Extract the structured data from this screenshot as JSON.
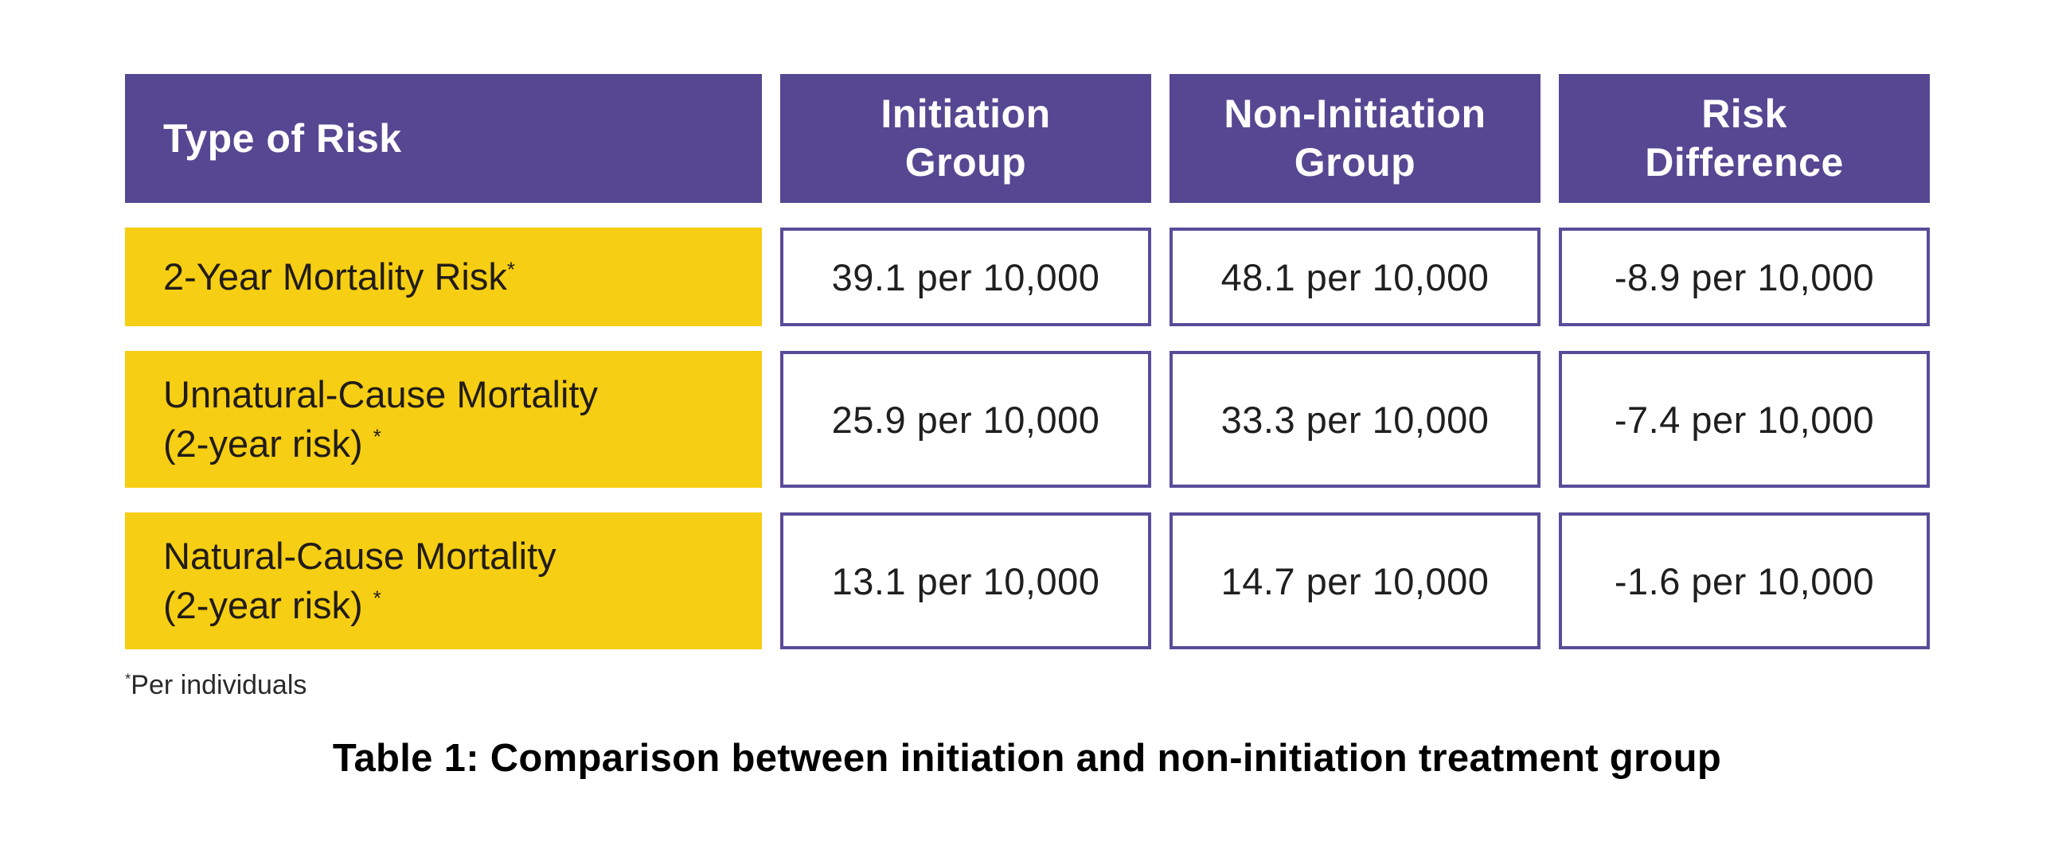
{
  "colors": {
    "header_purple": "#564792",
    "cell_border_purple": "#5A4C99",
    "row_yellow": "#F6CE13"
  },
  "table": {
    "headers": [
      {
        "label": "Type of Risk"
      },
      {
        "label": "Initiation\nGroup"
      },
      {
        "label": "Non-Initiation\nGroup"
      },
      {
        "label": "Risk\nDifference"
      }
    ],
    "rows": [
      {
        "risk_type": {
          "line1": "2-Year Mortality Risk",
          "sup1": "*",
          "line2": "",
          "sup2": ""
        },
        "initiation": "39.1 per 10,000",
        "non_initiation": "48.1 per 10,000",
        "risk_difference": "-8.9 per 10,000"
      },
      {
        "risk_type": {
          "line1": "Unnatural-Cause Mortality",
          "sup1": "",
          "line2": "(2-year risk) ",
          "sup2": "*"
        },
        "initiation": "25.9 per 10,000",
        "non_initiation": "33.3 per 10,000",
        "risk_difference": "-7.4 per 10,000"
      },
      {
        "risk_type": {
          "line1": "Natural-Cause Mortality",
          "sup1": "",
          "line2": "(2-year risk) ",
          "sup2": "*"
        },
        "initiation": "13.1 per 10,000",
        "non_initiation": "14.7 per 10,000",
        "risk_difference": "-1.6 per 10,000"
      }
    ]
  },
  "footnote": {
    "sup": "*",
    "text": "Per individuals"
  },
  "caption": "Table 1: Comparison between initiation and non-initiation treatment group",
  "chart_data": {
    "type": "table",
    "title": "Table 1: Comparison between initiation and non-initiation treatment group",
    "columns": [
      "Type of Risk",
      "Initiation Group",
      "Non-Initiation Group",
      "Risk Difference"
    ],
    "rows": [
      [
        "2-Year Mortality Risk*",
        "39.1 per 10,000",
        "48.1 per 10,000",
        "-8.9 per 10,000"
      ],
      [
        "Unnatural-Cause Mortality (2-year risk)*",
        "25.9 per 10,000",
        "33.3 per 10,000",
        "-7.4 per 10,000"
      ],
      [
        "Natural-Cause Mortality (2-year risk)*",
        "13.1 per 10,000",
        "14.7 per 10,000",
        "-1.6 per 10,000"
      ]
    ],
    "numeric_per_10000": {
      "initiation": [
        39.1,
        25.9,
        13.1
      ],
      "non_initiation": [
        48.1,
        33.3,
        14.7
      ],
      "risk_difference": [
        -8.9,
        -7.4,
        -1.6
      ]
    },
    "footnote": "*Per individuals"
  }
}
